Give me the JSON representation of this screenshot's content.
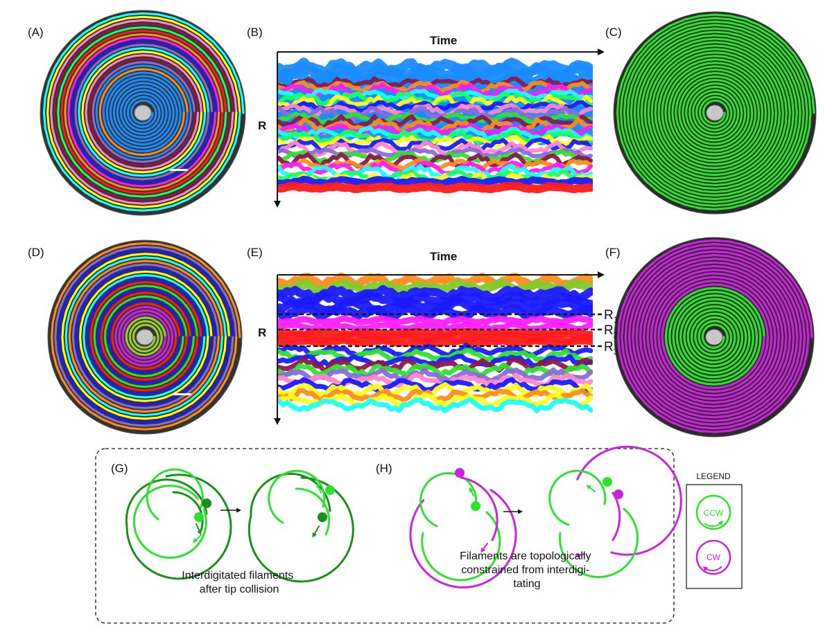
{
  "panels": {
    "A": {
      "label": "(A)"
    },
    "B": {
      "label": "(B)",
      "x_axis": "Time",
      "y_axis": "R"
    },
    "C": {
      "label": "(C)"
    },
    "D": {
      "label": "(D)"
    },
    "E": {
      "label": "(E)",
      "x_axis": "Time",
      "y_axis": "R",
      "levels": [
        {
          "name": "R",
          "sub": "1"
        },
        {
          "name": "R",
          "sub": "2"
        },
        {
          "name": "R",
          "sub": "3"
        }
      ]
    },
    "F": {
      "label": "(F)"
    },
    "G": {
      "label": "(G)",
      "caption_lines": [
        "Interdigitated filaments",
        "after tip collision"
      ]
    },
    "H": {
      "label": "(H)",
      "caption_lines": [
        "Filaments are topologically",
        "constrained from interdigi-",
        "tating"
      ]
    }
  },
  "legend": {
    "title": "LEGEND",
    "ccw": "CCW",
    "cw": "CW"
  },
  "colors": {
    "ccw": "#2ee12e",
    "ccw_dark": "#1a8f1a",
    "cw": "#cc22dd",
    "background_band": "#1a8cff",
    "track_palette": [
      "#ff1a1a",
      "#1a1aff",
      "#ffff1a",
      "#1aff5a",
      "#ff1aff",
      "#1affff",
      "#8b1a4a",
      "#ff8c1a",
      "#8c6bd9",
      "#ff88cc"
    ]
  }
}
